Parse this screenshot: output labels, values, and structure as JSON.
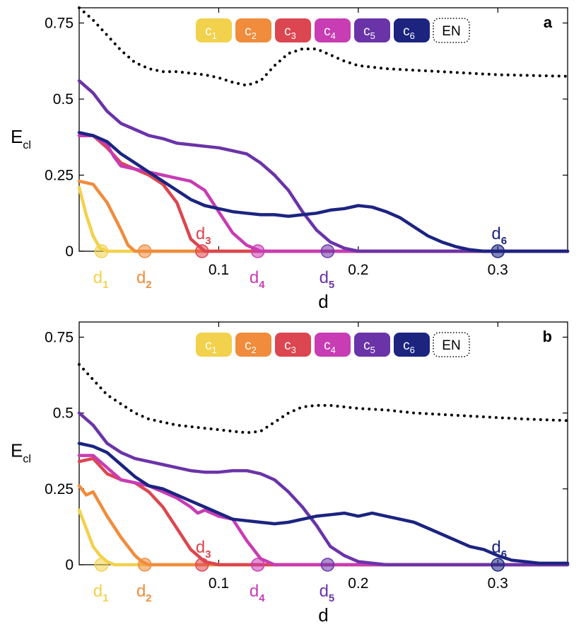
{
  "chart_data": [
    {
      "type": "line",
      "panel_label": "a",
      "xlabel": "d",
      "ylabel": "E",
      "ylabel_sub": "cl",
      "xlim": [
        0,
        0.35
      ],
      "ylim": [
        0,
        0.8
      ],
      "x_ticks": [
        0.1,
        0.2,
        0.3
      ],
      "y_ticks": [
        0,
        0.25,
        0.5,
        0.75
      ],
      "x_tick_labels": [
        "0.1",
        "0.2",
        "0.3"
      ],
      "y_tick_labels": [
        "0",
        "0.25",
        "0.5",
        "0.75"
      ],
      "legend": [
        {
          "letter": "c",
          "sub": "1",
          "color": "#f2d14c"
        },
        {
          "letter": "c",
          "sub": "2",
          "color": "#f08c3c"
        },
        {
          "letter": "c",
          "sub": "3",
          "color": "#dc4650"
        },
        {
          "letter": "c",
          "sub": "4",
          "color": "#c83cb4"
        },
        {
          "letter": "c",
          "sub": "5",
          "color": "#6a34a8"
        },
        {
          "letter": "c",
          "sub": "6",
          "color": "#1c2480"
        },
        {
          "letter": "EN",
          "sub": "",
          "color": "#000000",
          "style": "dotted"
        }
      ],
      "series": [
        {
          "name": "EN",
          "color": "#000000",
          "style": "dotted",
          "x": [
            0,
            0.01,
            0.02,
            0.03,
            0.04,
            0.05,
            0.06,
            0.07,
            0.08,
            0.09,
            0.1,
            0.11,
            0.12,
            0.13,
            0.14,
            0.15,
            0.16,
            0.17,
            0.18,
            0.19,
            0.2,
            0.22,
            0.24,
            0.26,
            0.28,
            0.3,
            0.32,
            0.35
          ],
          "y": [
            0.8,
            0.76,
            0.71,
            0.66,
            0.62,
            0.6,
            0.59,
            0.59,
            0.585,
            0.58,
            0.57,
            0.555,
            0.545,
            0.56,
            0.61,
            0.65,
            0.665,
            0.665,
            0.645,
            0.625,
            0.61,
            0.6,
            0.595,
            0.59,
            0.585,
            0.58,
            0.578,
            0.575
          ]
        },
        {
          "name": "c1",
          "color": "#f2d14c",
          "style": "solid",
          "x": [
            0,
            0.005,
            0.01,
            0.015,
            0.02,
            0.03,
            0.35
          ],
          "y": [
            0.21,
            0.12,
            0.05,
            0.01,
            0.0,
            0.0,
            0.0
          ]
        },
        {
          "name": "c2",
          "color": "#f08c3c",
          "style": "solid",
          "x": [
            0,
            0.01,
            0.02,
            0.03,
            0.035,
            0.04,
            0.05,
            0.35
          ],
          "y": [
            0.23,
            0.22,
            0.16,
            0.07,
            0.02,
            0.0,
            0.0,
            0.0
          ]
        },
        {
          "name": "c3",
          "color": "#dc4650",
          "style": "solid",
          "x": [
            0,
            0.01,
            0.02,
            0.03,
            0.04,
            0.05,
            0.06,
            0.07,
            0.075,
            0.08,
            0.09,
            0.1,
            0.35
          ],
          "y": [
            0.38,
            0.38,
            0.34,
            0.29,
            0.27,
            0.25,
            0.22,
            0.16,
            0.1,
            0.04,
            0.0,
            0.0,
            0.0
          ]
        },
        {
          "name": "c4",
          "color": "#c83cb4",
          "style": "solid",
          "x": [
            0,
            0.01,
            0.02,
            0.025,
            0.03,
            0.04,
            0.05,
            0.06,
            0.07,
            0.08,
            0.09,
            0.1,
            0.11,
            0.12,
            0.13,
            0.35
          ],
          "y": [
            0.38,
            0.38,
            0.35,
            0.31,
            0.28,
            0.27,
            0.26,
            0.25,
            0.24,
            0.23,
            0.2,
            0.13,
            0.06,
            0.02,
            0.0,
            0.0
          ]
        },
        {
          "name": "c5",
          "color": "#6a34a8",
          "style": "solid",
          "x": [
            0,
            0.01,
            0.02,
            0.03,
            0.04,
            0.05,
            0.06,
            0.07,
            0.08,
            0.09,
            0.1,
            0.11,
            0.12,
            0.13,
            0.14,
            0.15,
            0.16,
            0.17,
            0.18,
            0.19,
            0.2,
            0.35
          ],
          "y": [
            0.56,
            0.52,
            0.46,
            0.42,
            0.4,
            0.38,
            0.37,
            0.355,
            0.35,
            0.345,
            0.34,
            0.33,
            0.32,
            0.29,
            0.25,
            0.2,
            0.13,
            0.07,
            0.03,
            0.01,
            0.0,
            0.0
          ]
        },
        {
          "name": "c6",
          "color": "#1c2480",
          "style": "solid",
          "x": [
            0,
            0.01,
            0.02,
            0.03,
            0.04,
            0.05,
            0.06,
            0.07,
            0.08,
            0.09,
            0.1,
            0.11,
            0.12,
            0.13,
            0.14,
            0.15,
            0.16,
            0.17,
            0.18,
            0.19,
            0.2,
            0.21,
            0.22,
            0.23,
            0.24,
            0.25,
            0.26,
            0.27,
            0.28,
            0.29,
            0.3,
            0.35
          ],
          "y": [
            0.39,
            0.38,
            0.36,
            0.32,
            0.29,
            0.26,
            0.23,
            0.2,
            0.17,
            0.15,
            0.14,
            0.13,
            0.125,
            0.12,
            0.12,
            0.115,
            0.12,
            0.125,
            0.135,
            0.14,
            0.15,
            0.145,
            0.13,
            0.11,
            0.08,
            0.05,
            0.03,
            0.015,
            0.005,
            0.0,
            0.0,
            0.0
          ]
        }
      ],
      "markers": [
        {
          "letter": "d",
          "sub": "1",
          "x": 0.016,
          "color": "#f2d14c",
          "label_at": "below"
        },
        {
          "letter": "d",
          "sub": "2",
          "x": 0.047,
          "color": "#f08c3c",
          "label_at": "below"
        },
        {
          "letter": "d",
          "sub": "3",
          "x": 0.088,
          "color": "#dc4650",
          "label_at": "above"
        },
        {
          "letter": "d",
          "sub": "4",
          "x": 0.128,
          "color": "#c83cb4",
          "label_at": "below"
        },
        {
          "letter": "d",
          "sub": "5",
          "x": 0.178,
          "color": "#6a34a8",
          "label_at": "below"
        },
        {
          "letter": "d",
          "sub": "6",
          "x": 0.3,
          "color": "#1c2480",
          "label_at": "above"
        }
      ]
    },
    {
      "type": "line",
      "panel_label": "b",
      "xlabel": "d",
      "ylabel": "E",
      "ylabel_sub": "cl",
      "xlim": [
        0,
        0.35
      ],
      "ylim": [
        0,
        0.8
      ],
      "x_ticks": [
        0.1,
        0.2,
        0.3
      ],
      "y_ticks": [
        0,
        0.25,
        0.5,
        0.75
      ],
      "x_tick_labels": [
        "0.1",
        "0.2",
        "0.3"
      ],
      "y_tick_labels": [
        "0",
        "0.25",
        "0.5",
        "0.75"
      ],
      "legend": [
        {
          "letter": "c",
          "sub": "1",
          "color": "#f2d14c"
        },
        {
          "letter": "c",
          "sub": "2",
          "color": "#f08c3c"
        },
        {
          "letter": "c",
          "sub": "3",
          "color": "#dc4650"
        },
        {
          "letter": "c",
          "sub": "4",
          "color": "#c83cb4"
        },
        {
          "letter": "c",
          "sub": "5",
          "color": "#6a34a8"
        },
        {
          "letter": "c",
          "sub": "6",
          "color": "#1c2480"
        },
        {
          "letter": "EN",
          "sub": "",
          "color": "#000000",
          "style": "dotted"
        }
      ],
      "series": [
        {
          "name": "EN",
          "color": "#000000",
          "style": "dotted",
          "x": [
            0,
            0.01,
            0.02,
            0.03,
            0.04,
            0.05,
            0.06,
            0.07,
            0.08,
            0.09,
            0.1,
            0.11,
            0.12,
            0.13,
            0.14,
            0.15,
            0.16,
            0.17,
            0.18,
            0.19,
            0.2,
            0.22,
            0.24,
            0.26,
            0.28,
            0.3,
            0.32,
            0.35
          ],
          "y": [
            0.66,
            0.61,
            0.56,
            0.53,
            0.5,
            0.48,
            0.47,
            0.46,
            0.455,
            0.45,
            0.445,
            0.44,
            0.435,
            0.44,
            0.47,
            0.5,
            0.52,
            0.525,
            0.525,
            0.52,
            0.515,
            0.51,
            0.5,
            0.495,
            0.49,
            0.485,
            0.48,
            0.475
          ]
        },
        {
          "name": "c1",
          "color": "#f2d14c",
          "style": "solid",
          "x": [
            0,
            0.005,
            0.01,
            0.015,
            0.02,
            0.025,
            0.03,
            0.35
          ],
          "y": [
            0.18,
            0.12,
            0.06,
            0.03,
            0.01,
            0.0,
            0.0,
            0.0
          ]
        },
        {
          "name": "c2",
          "color": "#f08c3c",
          "style": "solid",
          "x": [
            0,
            0.005,
            0.01,
            0.015,
            0.02,
            0.03,
            0.04,
            0.045,
            0.05,
            0.35
          ],
          "y": [
            0.26,
            0.23,
            0.24,
            0.2,
            0.16,
            0.09,
            0.03,
            0.01,
            0.0,
            0.0
          ]
        },
        {
          "name": "c3",
          "color": "#dc4650",
          "style": "solid",
          "x": [
            0,
            0.01,
            0.02,
            0.03,
            0.04,
            0.05,
            0.06,
            0.07,
            0.08,
            0.09,
            0.1,
            0.35
          ],
          "y": [
            0.34,
            0.35,
            0.3,
            0.28,
            0.27,
            0.24,
            0.19,
            0.12,
            0.05,
            0.01,
            0.0,
            0.0
          ]
        },
        {
          "name": "c4",
          "color": "#c83cb4",
          "style": "solid",
          "x": [
            0,
            0.01,
            0.02,
            0.03,
            0.04,
            0.05,
            0.06,
            0.07,
            0.08,
            0.085,
            0.09,
            0.1,
            0.11,
            0.12,
            0.13,
            0.14,
            0.35
          ],
          "y": [
            0.36,
            0.36,
            0.32,
            0.28,
            0.27,
            0.26,
            0.24,
            0.22,
            0.19,
            0.17,
            0.18,
            0.16,
            0.15,
            0.08,
            0.02,
            0.0,
            0.0
          ]
        },
        {
          "name": "c5",
          "color": "#6a34a8",
          "style": "solid",
          "x": [
            0,
            0.01,
            0.02,
            0.03,
            0.04,
            0.05,
            0.06,
            0.07,
            0.08,
            0.09,
            0.1,
            0.11,
            0.12,
            0.13,
            0.14,
            0.15,
            0.16,
            0.17,
            0.18,
            0.19,
            0.2,
            0.22,
            0.35
          ],
          "y": [
            0.5,
            0.46,
            0.4,
            0.37,
            0.35,
            0.34,
            0.33,
            0.32,
            0.31,
            0.305,
            0.305,
            0.31,
            0.31,
            0.3,
            0.28,
            0.24,
            0.19,
            0.13,
            0.06,
            0.03,
            0.01,
            0.0,
            0.0
          ]
        },
        {
          "name": "c6",
          "color": "#1c2480",
          "style": "solid",
          "x": [
            0,
            0.01,
            0.02,
            0.03,
            0.04,
            0.05,
            0.06,
            0.07,
            0.08,
            0.09,
            0.1,
            0.11,
            0.12,
            0.13,
            0.14,
            0.15,
            0.16,
            0.17,
            0.18,
            0.19,
            0.2,
            0.21,
            0.22,
            0.23,
            0.24,
            0.25,
            0.26,
            0.27,
            0.28,
            0.29,
            0.3,
            0.31,
            0.32,
            0.33,
            0.35
          ],
          "y": [
            0.4,
            0.39,
            0.37,
            0.33,
            0.29,
            0.26,
            0.25,
            0.23,
            0.21,
            0.19,
            0.17,
            0.15,
            0.145,
            0.14,
            0.135,
            0.14,
            0.15,
            0.16,
            0.165,
            0.17,
            0.16,
            0.17,
            0.16,
            0.15,
            0.14,
            0.12,
            0.1,
            0.08,
            0.06,
            0.05,
            0.03,
            0.015,
            0.01,
            0.005,
            0.005
          ]
        }
      ],
      "markers": [
        {
          "letter": "d",
          "sub": "1",
          "x": 0.016,
          "color": "#f2d14c",
          "label_at": "below"
        },
        {
          "letter": "d",
          "sub": "2",
          "x": 0.047,
          "color": "#f08c3c",
          "label_at": "below"
        },
        {
          "letter": "d",
          "sub": "3",
          "x": 0.088,
          "color": "#dc4650",
          "label_at": "above"
        },
        {
          "letter": "d",
          "sub": "4",
          "x": 0.128,
          "color": "#c83cb4",
          "label_at": "below"
        },
        {
          "letter": "d",
          "sub": "5",
          "x": 0.178,
          "color": "#6a34a8",
          "label_at": "below"
        },
        {
          "letter": "d",
          "sub": "6",
          "x": 0.3,
          "color": "#1c2480",
          "label_at": "above"
        }
      ]
    }
  ]
}
